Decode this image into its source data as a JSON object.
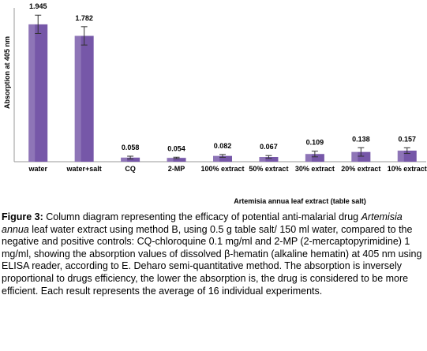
{
  "chart_data": {
    "type": "bar",
    "y_label": "Absorption at 405 nm",
    "x_label": "Artemisia annua leaf extract (table salt)",
    "categories": [
      "water",
      "water+salt",
      "CQ",
      "2-MP",
      "100% extract",
      "50% extract",
      "30% extract",
      "20% extract",
      "10% extract"
    ],
    "values": [
      1.945,
      1.782,
      0.058,
      0.054,
      0.082,
      0.067,
      0.109,
      0.138,
      0.157
    ],
    "errors": [
      0.13,
      0.13,
      0.02,
      0.01,
      0.02,
      0.02,
      0.04,
      0.06,
      0.04
    ],
    "color": "#7657a8",
    "ylim": [
      0,
      2.1
    ]
  },
  "caption": {
    "label": "Figure 3:",
    "text_1": "Column diagram representing the efficacy of potential anti-malarial drug",
    "italic": "Artemisia annua",
    "text_2": "leaf water extract using method B, using 0.5 g table salt/ 150 ml water, compared to the negative and positive controls: CQ-chloroquine 0.1 mg/ml and 2-MP (2-mercaptopyrimidine) 1 mg/ml, showing the absorption values of dissolved β-hematin (alkaline hematin) at 405 nm using ELISA reader, according to E. Deharo semi-quantitative method. The absorption is inversely proportional to drugs efficiency, the lower the absorption is, the drug is considered to be more efficient. Each result represents the average of 16 individual experiments."
  }
}
